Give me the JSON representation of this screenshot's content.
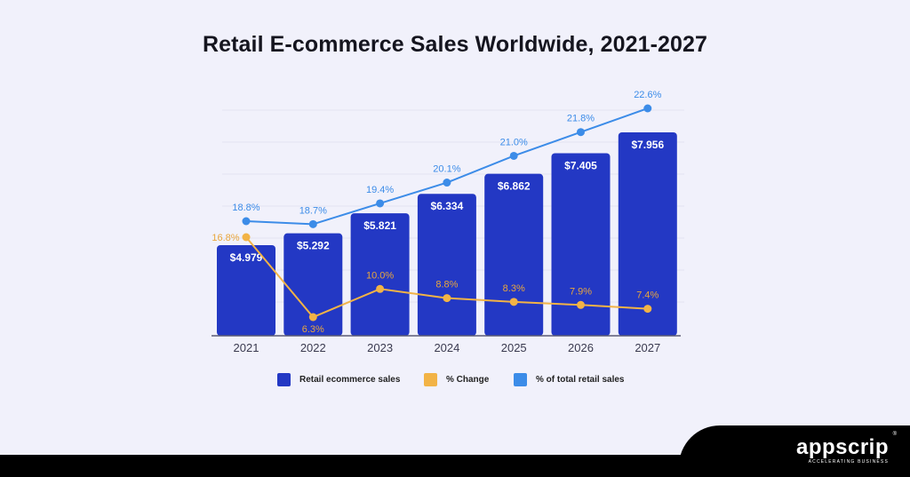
{
  "title": "Retail E-commerce Sales Worldwide, 2021-2027",
  "brand": {
    "name": "appscrip",
    "tagline": "ACCELERATING BUSINESS",
    "registered": "®"
  },
  "legend": [
    {
      "label": "Retail ecommerce sales",
      "color": "#2338c4"
    },
    {
      "label": "% Change",
      "color": "#f2b346"
    },
    {
      "label": "% of total retail sales",
      "color": "#3c8ce8"
    }
  ],
  "colors": {
    "bar": "#2338c4",
    "change": "#f2b346",
    "change_label": "#e9a63c",
    "share": "#3c8ce8",
    "axis": "#5b5b74",
    "grid": "#d5d5e4"
  },
  "chart_data": {
    "type": "bar",
    "categories": [
      "2021",
      "2022",
      "2023",
      "2024",
      "2025",
      "2026",
      "2027"
    ],
    "series": [
      {
        "name": "Retail ecommerce sales",
        "type": "bar",
        "values": [
          4.979,
          5.292,
          5.821,
          6.334,
          6.862,
          7.405,
          7.956
        ],
        "labels": [
          "$4.979",
          "$5.292",
          "$5.821",
          "$6.334",
          "$6.862",
          "$7.405",
          "$7.956"
        ]
      },
      {
        "name": "% Change",
        "type": "line",
        "values": [
          16.8,
          6.3,
          10.0,
          8.8,
          8.3,
          7.9,
          7.4
        ],
        "labels": [
          "16.8%",
          "6.3%",
          "10.0%",
          "8.8%",
          "8.3%",
          "7.9%",
          "7.4%"
        ]
      },
      {
        "name": "% of total retail sales",
        "type": "line",
        "values": [
          18.8,
          18.7,
          19.4,
          20.1,
          21.0,
          21.8,
          22.6
        ],
        "labels": [
          "18.8%",
          "18.7%",
          "19.4%",
          "20.1%",
          "21.0%",
          "21.8%",
          "22.6%"
        ]
      }
    ],
    "legend_position": "bottom",
    "grid": true
  }
}
